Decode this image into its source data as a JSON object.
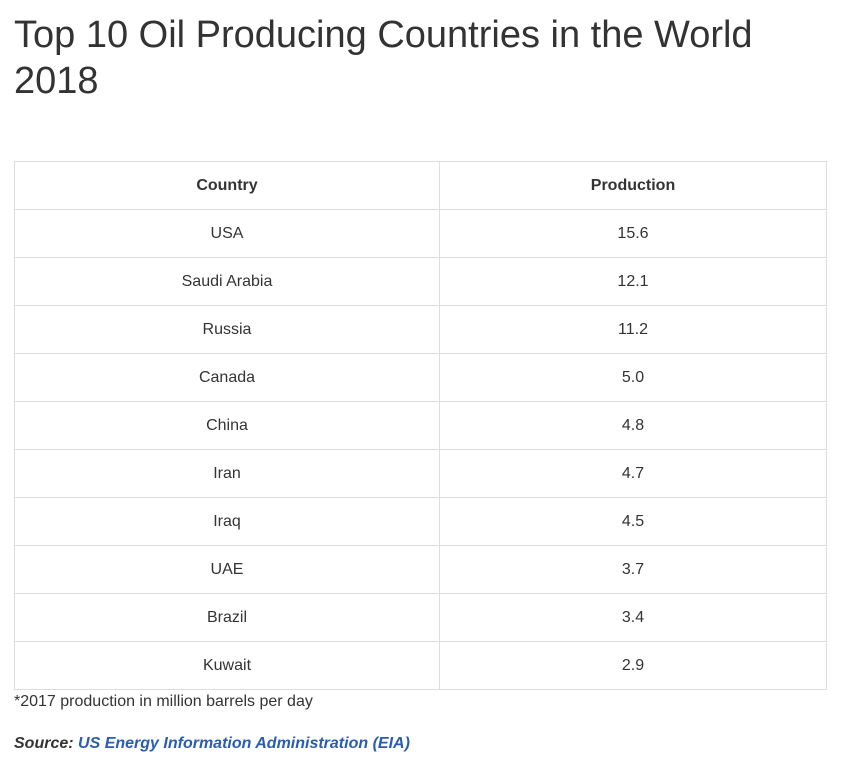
{
  "title": "Top 10 Oil Producing Countries in the World 2018",
  "table": {
    "headers": [
      "Country",
      "Production"
    ],
    "rows": [
      [
        "USA",
        "15.6"
      ],
      [
        "Saudi Arabia",
        "12.1"
      ],
      [
        "Russia",
        "11.2"
      ],
      [
        "Canada",
        "5.0"
      ],
      [
        "China",
        "4.8"
      ],
      [
        "Iran",
        "4.7"
      ],
      [
        "Iraq",
        "4.5"
      ],
      [
        "UAE",
        "3.7"
      ],
      [
        "Brazil",
        "3.4"
      ],
      [
        "Kuwait",
        "2.9"
      ]
    ]
  },
  "footnote": "*2017 production in million barrels per day",
  "source": {
    "label": "Source:",
    "link_text": "US Energy Information Administration (EIA)"
  },
  "colors": {
    "text": "#333333",
    "link": "#2a5db0",
    "border": "#dddddd"
  }
}
